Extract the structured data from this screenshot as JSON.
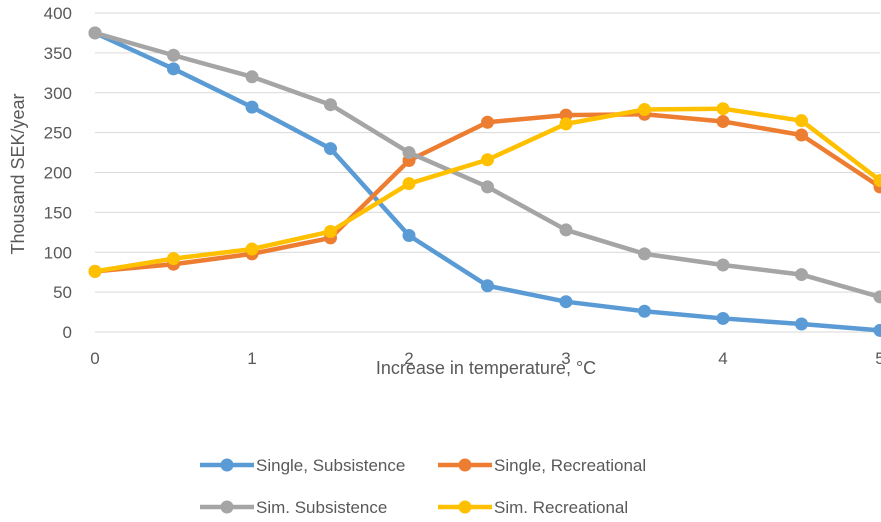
{
  "chart_data": {
    "type": "line",
    "title": "",
    "xlabel": "Increase in temperature, °C",
    "ylabel": "Thousand SEK/year",
    "x": [
      0,
      0.5,
      1,
      1.5,
      2,
      2.5,
      3,
      3.5,
      4,
      4.5,
      5
    ],
    "xlim": [
      0,
      5
    ],
    "ylim": [
      0,
      400
    ],
    "x_ticks": [
      0,
      1,
      2,
      3,
      4,
      5
    ],
    "y_ticks": [
      0,
      50,
      100,
      150,
      200,
      250,
      300,
      350,
      400
    ],
    "grid": "horizontal",
    "legend_position": "bottom",
    "series": [
      {
        "name": "Single, Subsistence",
        "color": "#5B9BD5",
        "values": [
          375,
          330,
          282,
          230,
          121,
          58,
          38,
          26,
          17,
          10,
          2
        ]
      },
      {
        "name": "Single, Recreational",
        "color": "#ED7D31",
        "values": [
          76,
          85,
          98,
          118,
          215,
          263,
          272,
          273,
          264,
          247,
          182
        ]
      },
      {
        "name": "Sim. Subsistence",
        "color": "#A5A5A5",
        "values": [
          375,
          347,
          320,
          285,
          225,
          182,
          128,
          98,
          84,
          72,
          44
        ]
      },
      {
        "name": "Sim. Recreational",
        "color": "#FFC000",
        "values": [
          76,
          92,
          104,
          126,
          186,
          216,
          261,
          279,
          280,
          265,
          190
        ]
      }
    ]
  }
}
